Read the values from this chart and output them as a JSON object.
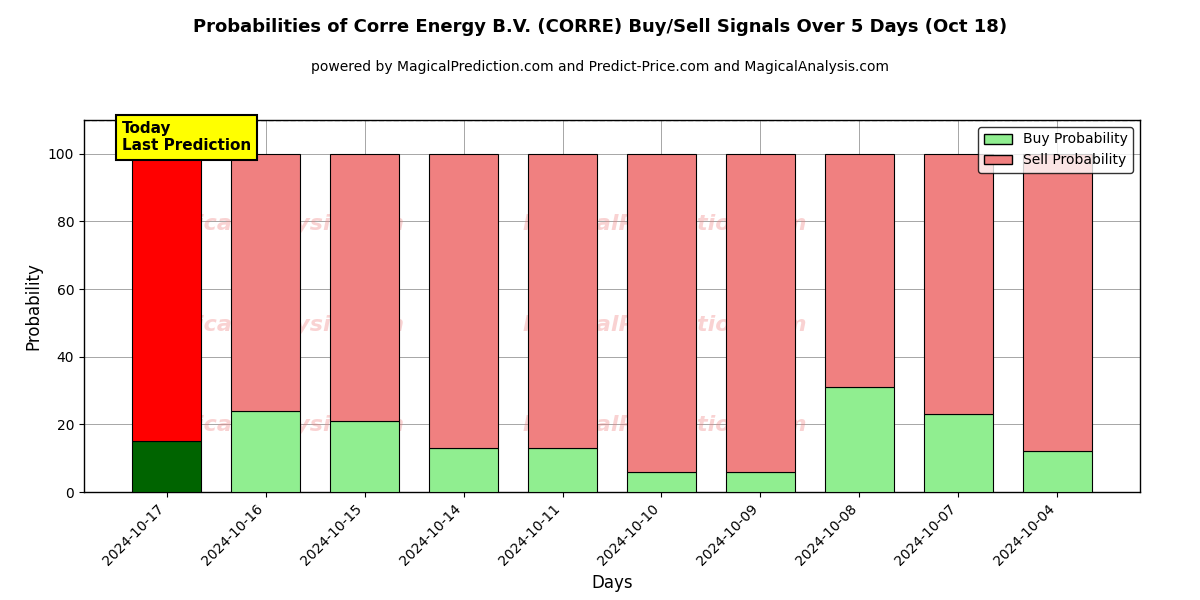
{
  "title": "Probabilities of Corre Energy B.V. (CORRE) Buy/Sell Signals Over 5 Days (Oct 18)",
  "subtitle": "powered by MagicalPrediction.com and Predict-Price.com and MagicalAnalysis.com",
  "xlabel": "Days",
  "ylabel": "Probability",
  "dates": [
    "2024-10-17",
    "2024-10-16",
    "2024-10-15",
    "2024-10-14",
    "2024-10-11",
    "2024-10-10",
    "2024-10-09",
    "2024-10-08",
    "2024-10-07",
    "2024-10-04"
  ],
  "buy_values": [
    15,
    24,
    21,
    13,
    13,
    6,
    6,
    31,
    23,
    12
  ],
  "sell_values": [
    85,
    76,
    79,
    87,
    87,
    94,
    94,
    69,
    77,
    88
  ],
  "today_buy_color": "#006400",
  "today_sell_color": "#FF0000",
  "buy_color": "#90EE90",
  "sell_color": "#F08080",
  "today_label_bg": "#FFFF00",
  "today_label_text": "Today\nLast Prediction",
  "legend_buy": "Buy Probability",
  "legend_sell": "Sell Probability",
  "ylim": [
    0,
    110
  ],
  "dashed_line_y": 110,
  "bar_width": 0.7,
  "edgecolor": "#000000",
  "bg_color": "#ffffff",
  "watermark_color": "#F08080",
  "watermark_alpha": 0.35
}
